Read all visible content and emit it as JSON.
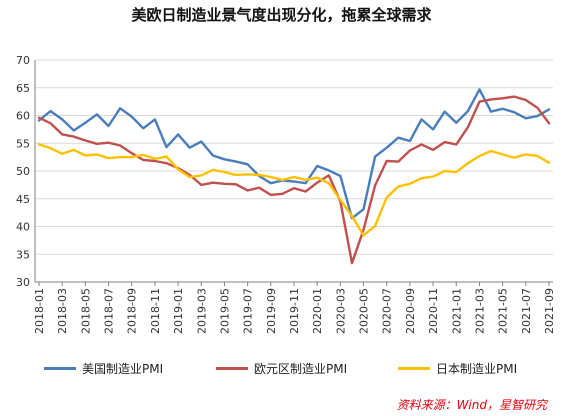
{
  "title": "美欧日制造业景气度出现分化，拖累全球需求",
  "source": "资料来源：Wind，星智研究",
  "colors": {
    "us": "#4a7ebb",
    "eu": "#c0504d",
    "jp": "#ffc000",
    "grid": "#d9d9d9",
    "axis": "#808080"
  },
  "chart_data": {
    "type": "line",
    "title": "美欧日制造业景气度出现分化，拖累全球需求",
    "xlabel": "",
    "ylabel": "",
    "ylim": [
      30,
      70
    ],
    "yticks": [
      30,
      35,
      40,
      45,
      50,
      55,
      60,
      65,
      70
    ],
    "grid": true,
    "legend": "bottom",
    "x": [
      "2018-01",
      "2018-02",
      "2018-03",
      "2018-04",
      "2018-05",
      "2018-06",
      "2018-07",
      "2018-08",
      "2018-09",
      "2018-10",
      "2018-11",
      "2018-12",
      "2019-01",
      "2019-02",
      "2019-03",
      "2019-04",
      "2019-05",
      "2019-06",
      "2019-07",
      "2019-08",
      "2019-09",
      "2019-10",
      "2019-11",
      "2019-12",
      "2020-01",
      "2020-02",
      "2020-03",
      "2020-04",
      "2020-05",
      "2020-06",
      "2020-07",
      "2020-08",
      "2020-09",
      "2020-10",
      "2020-11",
      "2020-12",
      "2021-01",
      "2021-02",
      "2021-03",
      "2021-04",
      "2021-05",
      "2021-06",
      "2021-07",
      "2021-08",
      "2021-09"
    ],
    "tick_labels": [
      "2018-01",
      "2018-03",
      "2018-05",
      "2018-07",
      "2018-09",
      "2018-11",
      "2019-01",
      "2019-03",
      "2019-05",
      "2019-07",
      "2019-09",
      "2019-11",
      "2020-01",
      "2020-03",
      "2020-05",
      "2020-07",
      "2020-09",
      "2020-11",
      "2021-01",
      "2021-03",
      "2021-05",
      "2021-07",
      "2021-09"
    ],
    "series": [
      {
        "name": "美国制造业PMI",
        "key": "us",
        "values": [
          59.1,
          60.8,
          59.3,
          57.3,
          58.7,
          60.2,
          58.1,
          61.3,
          59.8,
          57.7,
          59.3,
          54.3,
          56.6,
          54.2,
          55.3,
          52.8,
          52.1,
          51.7,
          51.2,
          49.1,
          47.8,
          48.3,
          48.1,
          47.8,
          50.9,
          50.1,
          49.1,
          41.5,
          43.1,
          52.6,
          54.2,
          56.0,
          55.4,
          59.3,
          57.5,
          60.7,
          58.7,
          60.8,
          64.7,
          60.7,
          61.2,
          60.6,
          59.5,
          59.9,
          61.1
        ]
      },
      {
        "name": "欧元区制造业PMI",
        "key": "eu",
        "values": [
          59.6,
          58.6,
          56.6,
          56.2,
          55.5,
          54.9,
          55.1,
          54.6,
          53.2,
          52.0,
          51.8,
          51.4,
          50.5,
          49.3,
          47.5,
          47.9,
          47.7,
          47.6,
          46.5,
          47.0,
          45.7,
          45.9,
          46.9,
          46.3,
          47.9,
          49.2,
          44.5,
          33.4,
          39.4,
          47.4,
          51.8,
          51.7,
          53.7,
          54.8,
          53.8,
          55.2,
          54.8,
          57.9,
          62.5,
          62.9,
          63.1,
          63.4,
          62.8,
          61.4,
          58.6
        ]
      },
      {
        "name": "日本制造业PMI",
        "key": "jp",
        "values": [
          54.8,
          54.1,
          53.1,
          53.8,
          52.8,
          53.0,
          52.3,
          52.5,
          52.5,
          52.9,
          52.2,
          52.6,
          50.3,
          48.9,
          49.2,
          50.2,
          49.8,
          49.3,
          49.4,
          49.3,
          48.9,
          48.4,
          48.9,
          48.4,
          48.8,
          47.8,
          44.8,
          41.9,
          38.4,
          40.1,
          45.2,
          47.2,
          47.7,
          48.7,
          49.0,
          50.0,
          49.8,
          51.4,
          52.7,
          53.6,
          53.0,
          52.4,
          53.0,
          52.7,
          51.5
        ]
      }
    ]
  }
}
